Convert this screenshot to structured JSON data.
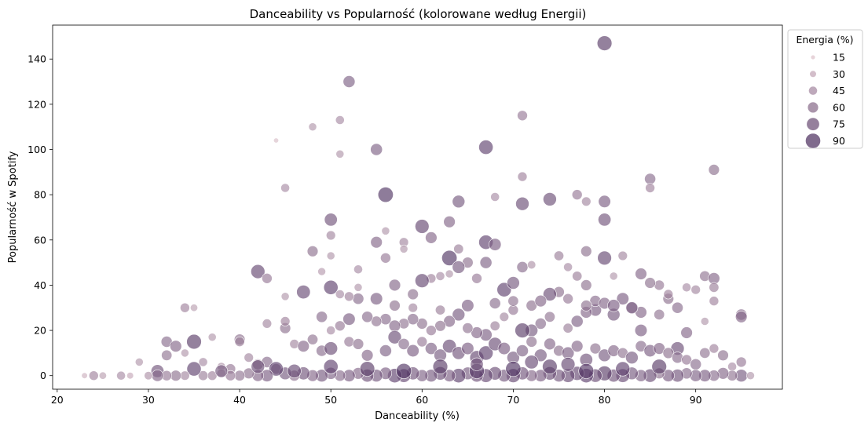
{
  "chart_data": {
    "type": "scatter",
    "title": "Danceability vs Popularność (kolorowane według Energii)",
    "xlabel": "Danceability (%)",
    "ylabel": "Popularność w Spotify",
    "xlim": [
      19.5,
      99.5
    ],
    "ylim": [
      -6,
      155
    ],
    "xticks": [
      20,
      30,
      40,
      50,
      60,
      70,
      80,
      90
    ],
    "yticks": [
      0,
      20,
      40,
      60,
      80,
      100,
      120,
      140
    ],
    "grid": false,
    "color_encoding": "Energia (%)",
    "size_encoding": "Energia (%)",
    "colors": {
      "low": "#e8cdd3",
      "high": "#4d3060"
    },
    "legend": {
      "title": "Energia (%)",
      "placement": "upper right outside",
      "entries": [
        "15",
        "30",
        "45",
        "60",
        "75",
        "90"
      ],
      "values": [
        15,
        30,
        45,
        60,
        75,
        90
      ]
    },
    "points": [
      [
        80,
        147,
        88
      ],
      [
        52,
        130,
        68
      ],
      [
        71,
        115,
        55
      ],
      [
        51,
        113,
        45
      ],
      [
        48,
        110,
        40
      ],
      [
        44,
        104,
        18
      ],
      [
        55,
        100,
        68
      ],
      [
        51,
        98,
        40
      ],
      [
        67,
        101,
        85
      ],
      [
        92,
        91,
        60
      ],
      [
        71,
        88,
        50
      ],
      [
        85,
        87,
        62
      ],
      [
        85,
        83,
        50
      ],
      [
        45,
        83,
        45
      ],
      [
        56,
        80,
        92
      ],
      [
        68,
        79,
        45
      ],
      [
        77,
        80,
        55
      ],
      [
        80,
        77,
        70
      ],
      [
        64,
        77,
        72
      ],
      [
        78,
        77,
        48
      ],
      [
        71,
        76,
        78
      ],
      [
        74,
        78,
        78
      ],
      [
        80,
        69,
        75
      ],
      [
        50,
        69,
        75
      ],
      [
        60,
        66,
        82
      ],
      [
        63,
        68,
        65
      ],
      [
        50,
        62,
        48
      ],
      [
        58,
        59,
        48
      ],
      [
        55,
        59,
        65
      ],
      [
        67,
        59,
        85
      ],
      [
        68,
        58,
        70
      ],
      [
        61,
        61,
        65
      ],
      [
        56,
        64,
        40
      ],
      [
        58,
        56,
        40
      ],
      [
        48,
        55,
        60
      ],
      [
        78,
        55,
        60
      ],
      [
        75,
        53,
        52
      ],
      [
        82,
        53,
        48
      ],
      [
        56,
        52,
        55
      ],
      [
        63,
        52,
        92
      ],
      [
        80,
        52,
        82
      ],
      [
        50,
        53,
        40
      ],
      [
        64,
        56,
        52
      ],
      [
        42,
        46,
        82
      ],
      [
        43,
        43,
        55
      ],
      [
        53,
        47,
        45
      ],
      [
        49,
        46,
        38
      ],
      [
        65,
        50,
        60
      ],
      [
        71,
        48,
        62
      ],
      [
        64,
        48,
        72
      ],
      [
        67,
        50,
        68
      ],
      [
        76,
        48,
        45
      ],
      [
        86,
        40,
        55
      ],
      [
        85,
        41,
        60
      ],
      [
        84,
        45,
        65
      ],
      [
        89,
        39,
        45
      ],
      [
        91,
        44,
        58
      ],
      [
        92,
        43,
        65
      ],
      [
        92,
        39,
        52
      ],
      [
        90,
        38,
        48
      ],
      [
        50,
        39,
        85
      ],
      [
        47,
        37,
        80
      ],
      [
        62,
        44,
        45
      ],
      [
        61,
        43,
        50
      ],
      [
        72,
        49,
        42
      ],
      [
        75,
        37,
        60
      ],
      [
        77,
        44,
        52
      ],
      [
        78,
        40,
        60
      ],
      [
        81,
        44,
        40
      ],
      [
        74,
        36,
        78
      ],
      [
        59,
        36,
        60
      ],
      [
        57,
        40,
        65
      ],
      [
        55,
        34,
        70
      ],
      [
        53,
        34,
        62
      ],
      [
        60,
        42,
        82
      ],
      [
        69,
        38,
        85
      ],
      [
        70,
        41,
        72
      ],
      [
        66,
        43,
        55
      ],
      [
        63,
        45,
        40
      ],
      [
        52,
        35,
        50
      ],
      [
        51,
        36,
        45
      ],
      [
        53,
        39,
        40
      ],
      [
        45,
        35,
        40
      ],
      [
        82,
        34,
        70
      ],
      [
        87,
        34,
        60
      ],
      [
        87,
        36,
        50
      ],
      [
        95,
        27,
        62
      ],
      [
        95,
        26,
        65
      ],
      [
        92,
        33,
        50
      ],
      [
        91,
        24,
        40
      ],
      [
        89,
        19,
        65
      ],
      [
        88,
        12,
        78
      ],
      [
        84,
        20,
        70
      ],
      [
        84,
        28,
        65
      ],
      [
        83,
        30,
        62
      ],
      [
        81,
        27,
        72
      ],
      [
        79,
        29,
        70
      ],
      [
        79,
        33,
        62
      ],
      [
        78,
        28,
        65
      ],
      [
        77,
        24,
        68
      ],
      [
        76,
        21,
        52
      ],
      [
        74,
        26,
        58
      ],
      [
        73,
        23,
        62
      ],
      [
        72,
        20,
        72
      ],
      [
        71,
        20,
        88
      ],
      [
        70,
        29,
        55
      ],
      [
        69,
        26,
        48
      ],
      [
        68,
        22,
        52
      ],
      [
        67,
        18,
        70
      ],
      [
        66,
        19,
        65
      ],
      [
        65,
        21,
        58
      ],
      [
        64,
        27,
        72
      ],
      [
        63,
        24,
        65
      ],
      [
        62,
        22,
        60
      ],
      [
        61,
        20,
        55
      ],
      [
        60,
        23,
        60
      ],
      [
        59,
        25,
        62
      ],
      [
        58,
        23,
        58
      ],
      [
        57,
        22,
        65
      ],
      [
        56,
        25,
        62
      ],
      [
        55,
        24,
        58
      ],
      [
        54,
        26,
        62
      ],
      [
        52,
        25,
        70
      ],
      [
        51,
        22,
        55
      ],
      [
        50,
        20,
        45
      ],
      [
        49,
        26,
        62
      ],
      [
        45,
        21,
        60
      ],
      [
        45,
        24,
        50
      ],
      [
        43,
        23,
        48
      ],
      [
        40,
        16,
        60
      ],
      [
        40,
        15,
        52
      ],
      [
        37,
        17,
        40
      ],
      [
        35,
        15,
        88
      ],
      [
        32,
        15,
        62
      ],
      [
        33,
        13,
        65
      ],
      [
        34,
        10,
        40
      ],
      [
        32,
        9,
        58
      ],
      [
        31,
        2,
        75
      ],
      [
        36,
        6,
        45
      ],
      [
        38,
        4,
        42
      ],
      [
        39,
        3,
        55
      ],
      [
        41,
        8,
        48
      ],
      [
        42,
        5,
        60
      ],
      [
        43,
        6,
        62
      ],
      [
        44,
        3,
        58
      ],
      [
        46,
        14,
        48
      ],
      [
        47,
        13,
        65
      ],
      [
        48,
        16,
        58
      ],
      [
        49,
        11,
        62
      ],
      [
        50,
        12,
        78
      ],
      [
        52,
        15,
        55
      ],
      [
        53,
        14,
        60
      ],
      [
        54,
        9,
        65
      ],
      [
        56,
        11,
        68
      ],
      [
        57,
        17,
        78
      ],
      [
        58,
        14,
        62
      ],
      [
        59,
        11,
        70
      ],
      [
        60,
        15,
        55
      ],
      [
        61,
        12,
        68
      ],
      [
        62,
        9,
        72
      ],
      [
        63,
        13,
        80
      ],
      [
        64,
        10,
        75
      ],
      [
        65,
        12,
        70
      ],
      [
        66,
        8,
        82
      ],
      [
        67,
        10,
        85
      ],
      [
        68,
        14,
        78
      ],
      [
        69,
        12,
        70
      ],
      [
        70,
        8,
        72
      ],
      [
        71,
        11,
        68
      ],
      [
        72,
        15,
        60
      ],
      [
        73,
        9,
        72
      ],
      [
        74,
        14,
        65
      ],
      [
        75,
        11,
        60
      ],
      [
        76,
        10,
        70
      ],
      [
        77,
        13,
        65
      ],
      [
        78,
        7,
        75
      ],
      [
        79,
        12,
        60
      ],
      [
        80,
        9,
        72
      ],
      [
        81,
        11,
        65
      ],
      [
        82,
        10,
        58
      ],
      [
        83,
        8,
        72
      ],
      [
        84,
        13,
        62
      ],
      [
        85,
        11,
        70
      ],
      [
        86,
        12,
        65
      ],
      [
        87,
        10,
        60
      ],
      [
        88,
        8,
        62
      ],
      [
        89,
        7,
        55
      ],
      [
        90,
        5,
        62
      ],
      [
        91,
        10,
        58
      ],
      [
        92,
        12,
        50
      ],
      [
        93,
        9,
        60
      ],
      [
        94,
        4,
        45
      ],
      [
        95,
        6,
        55
      ],
      [
        95,
        0,
        72
      ],
      [
        94,
        0,
        58
      ],
      [
        93,
        1,
        65
      ],
      [
        92,
        0,
        62
      ],
      [
        91,
        0,
        70
      ],
      [
        90,
        0,
        68
      ],
      [
        89,
        1,
        62
      ],
      [
        88,
        0,
        75
      ],
      [
        87,
        0,
        70
      ],
      [
        86,
        1,
        60
      ],
      [
        85,
        0,
        78
      ],
      [
        84,
        0,
        68
      ],
      [
        83,
        1,
        72
      ],
      [
        82,
        0,
        80
      ],
      [
        81,
        0,
        75
      ],
      [
        80,
        1,
        88
      ],
      [
        79,
        0,
        78
      ],
      [
        78,
        0,
        85
      ],
      [
        77,
        1,
        82
      ],
      [
        76,
        0,
        80
      ],
      [
        75,
        0,
        72
      ],
      [
        74,
        1,
        78
      ],
      [
        73,
        0,
        70
      ],
      [
        72,
        0,
        65
      ],
      [
        71,
        1,
        75
      ],
      [
        70,
        0,
        82
      ],
      [
        69,
        0,
        72
      ],
      [
        68,
        1,
        78
      ],
      [
        67,
        0,
        80
      ],
      [
        66,
        0,
        75
      ],
      [
        65,
        1,
        72
      ],
      [
        64,
        0,
        85
      ],
      [
        63,
        0,
        70
      ],
      [
        62,
        1,
        78
      ],
      [
        61,
        0,
        72
      ],
      [
        60,
        0,
        68
      ],
      [
        59,
        1,
        75
      ],
      [
        58,
        0,
        80
      ],
      [
        57,
        0,
        85
      ],
      [
        56,
        1,
        70
      ],
      [
        55,
        0,
        72
      ],
      [
        54,
        0,
        75
      ],
      [
        53,
        1,
        65
      ],
      [
        52,
        0,
        70
      ],
      [
        51,
        0,
        62
      ],
      [
        50,
        1,
        68
      ],
      [
        49,
        0,
        72
      ],
      [
        48,
        0,
        65
      ],
      [
        47,
        1,
        75
      ],
      [
        46,
        0,
        60
      ],
      [
        45,
        1,
        72
      ],
      [
        44,
        3,
        85
      ],
      [
        43,
        0,
        70
      ],
      [
        42,
        0,
        65
      ],
      [
        41,
        1,
        60
      ],
      [
        40,
        0,
        58
      ],
      [
        39,
        0,
        55
      ],
      [
        38,
        1,
        45
      ],
      [
        37,
        0,
        50
      ],
      [
        36,
        0,
        52
      ],
      [
        35,
        3,
        85
      ],
      [
        34,
        0,
        48
      ],
      [
        33,
        0,
        60
      ],
      [
        32,
        0,
        55
      ],
      [
        31,
        0,
        65
      ],
      [
        30,
        0,
        42
      ],
      [
        28,
        0,
        30
      ],
      [
        27,
        0,
        45
      ],
      [
        25,
        0,
        35
      ],
      [
        24,
        0,
        50
      ],
      [
        23,
        0,
        25
      ],
      [
        29,
        6,
        40
      ],
      [
        96,
        0,
        40
      ],
      [
        34,
        30,
        50
      ],
      [
        35,
        30,
        35
      ],
      [
        57,
        31,
        60
      ],
      [
        59,
        30,
        48
      ],
      [
        62,
        29,
        52
      ],
      [
        65,
        31,
        70
      ],
      [
        68,
        32,
        62
      ],
      [
        70,
        33,
        58
      ],
      [
        72,
        31,
        60
      ],
      [
        73,
        33,
        65
      ],
      [
        76,
        34,
        55
      ],
      [
        78,
        31,
        60
      ],
      [
        80,
        32,
        65
      ],
      [
        81,
        31,
        70
      ],
      [
        83,
        30,
        68
      ],
      [
        86,
        27,
        58
      ],
      [
        88,
        30,
        62
      ],
      [
        66,
        2,
        90
      ],
      [
        70,
        3,
        92
      ],
      [
        74,
        4,
        88
      ],
      [
        78,
        2,
        90
      ],
      [
        82,
        3,
        85
      ],
      [
        86,
        4,
        88
      ],
      [
        62,
        4,
        88
      ],
      [
        58,
        2,
        92
      ],
      [
        54,
        3,
        88
      ],
      [
        50,
        4,
        85
      ],
      [
        46,
        2,
        80
      ],
      [
        42,
        4,
        78
      ],
      [
        38,
        2,
        72
      ],
      [
        66,
        5,
        75
      ],
      [
        72,
        6,
        80
      ],
      [
        76,
        5,
        82
      ]
    ]
  }
}
